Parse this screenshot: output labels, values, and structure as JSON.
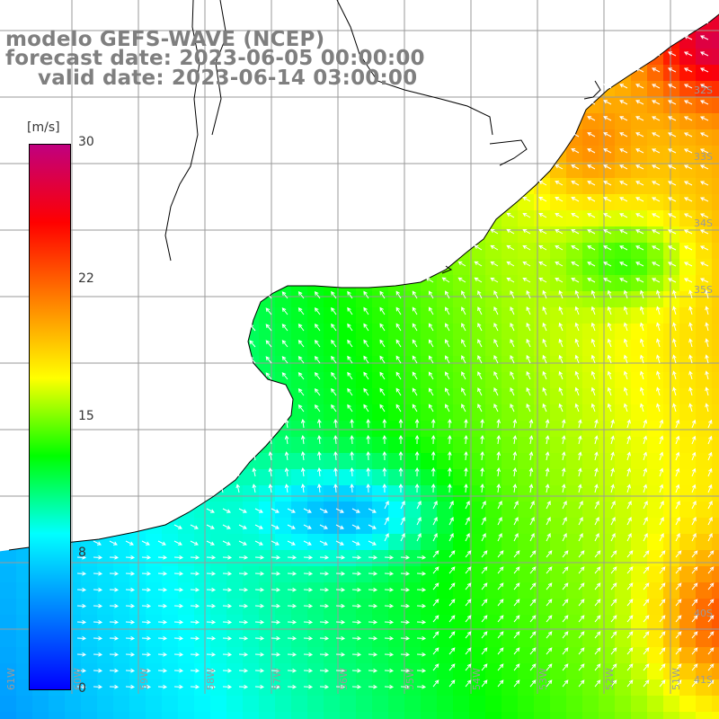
{
  "title": {
    "line1": "modelo GEFS-WAVE (NCEP)",
    "line2": "forecast date: 2023-06-05 00:00:00",
    "line3": "valid date: 2023-06-14 03:00:00"
  },
  "colorbar": {
    "unit": "[m/s]",
    "ticks": [
      "30",
      "22",
      "15",
      "8",
      "0"
    ],
    "range": [
      0,
      30
    ],
    "stops": [
      "#0000ff",
      "#0080ff",
      "#00ffff",
      "#00ff00",
      "#ffff00",
      "#ff8000",
      "#ff0000",
      "#c0007f"
    ]
  },
  "map": {
    "colors": {
      "land": "#ffffff",
      "coast": "#000000",
      "grid": "#9a9a9a",
      "arrow": "#ffffff"
    },
    "lat_labels": [
      "32S",
      "33S",
      "34S",
      "35S",
      "40S",
      "41S"
    ],
    "lon_labels": [
      "61W",
      "60W",
      "59W",
      "58W",
      "57W",
      "56W",
      "55W",
      "54W",
      "53W",
      "52W",
      "51W"
    ]
  }
}
